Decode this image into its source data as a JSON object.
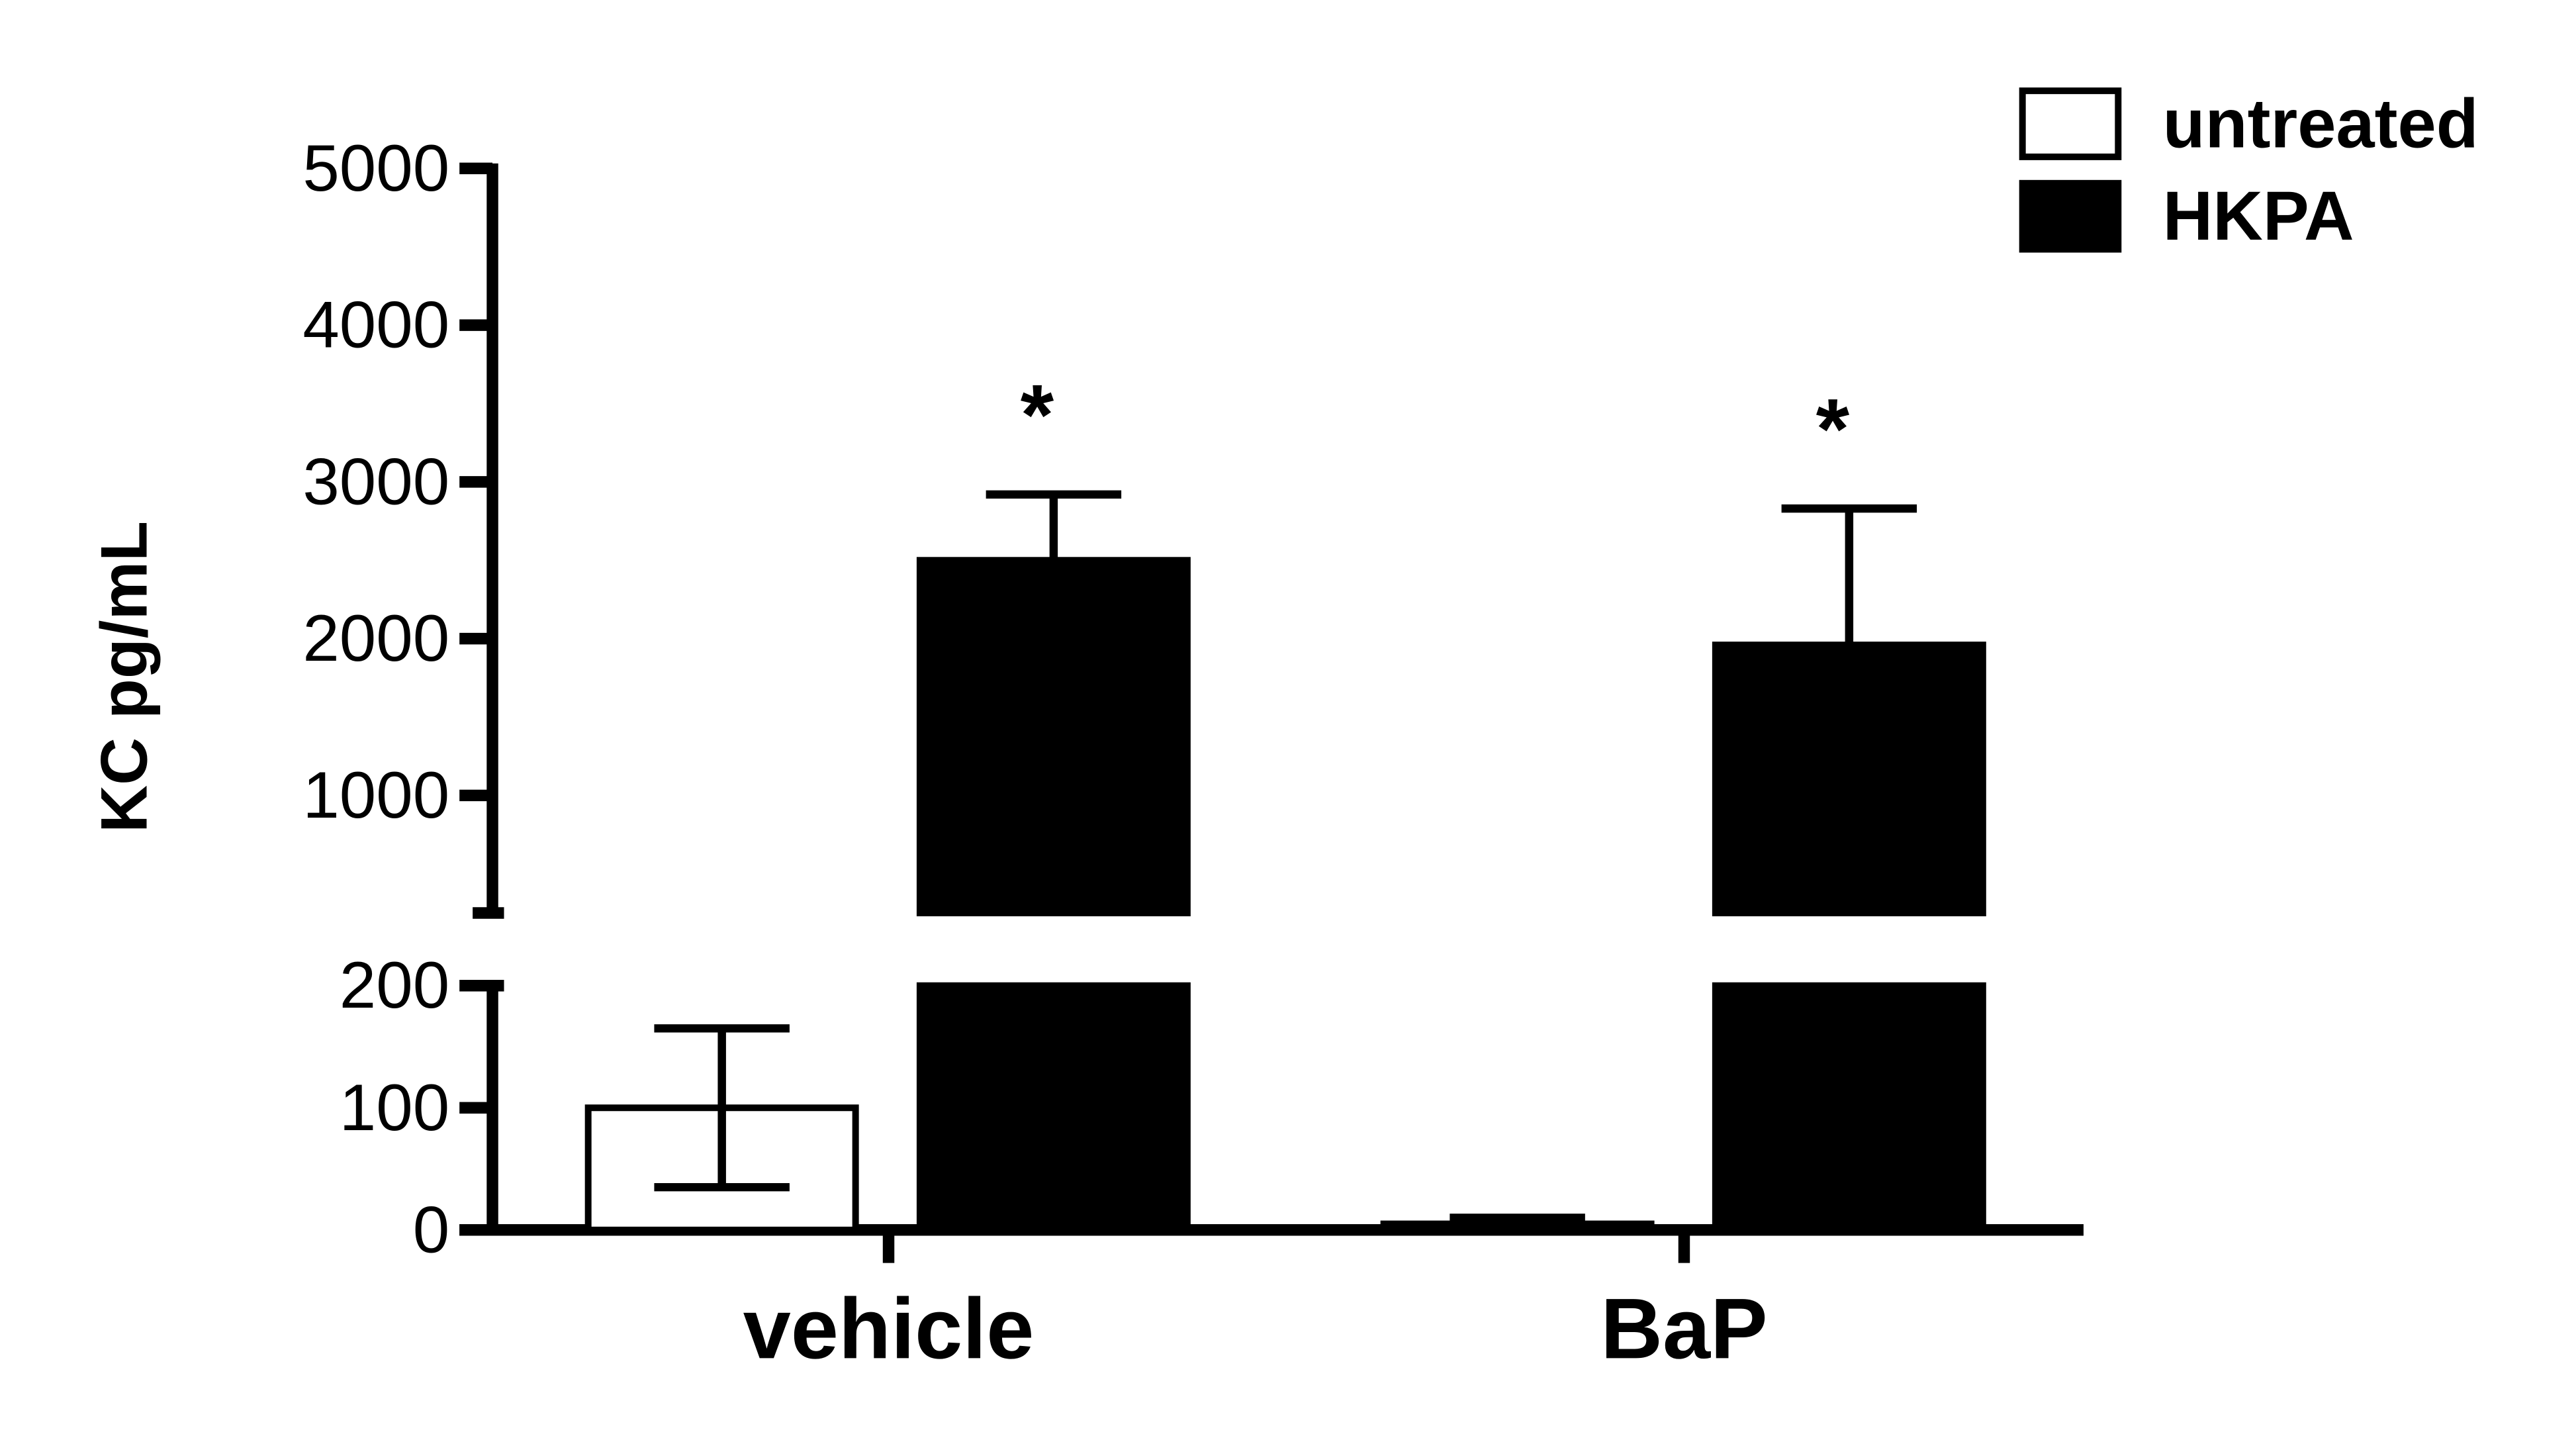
{
  "chart_data": {
    "type": "bar",
    "y_label": "KC pg/mL",
    "categories": [
      "vehicle",
      "BaP"
    ],
    "series": [
      {
        "name": "untreated",
        "color": "#ffffff",
        "values": [
          100,
          5
        ],
        "errors": [
          65,
          5
        ]
      },
      {
        "name": "HKPA",
        "color": "#000000",
        "values": [
          2500,
          1960
        ],
        "errors": [
          420,
          870
        ],
        "annotations": [
          "*",
          "*"
        ]
      }
    ],
    "y_segments": [
      {
        "ylim": [
          0,
          200
        ],
        "yticks": [
          0,
          100,
          200
        ]
      },
      {
        "ylim": [
          250,
          5000
        ],
        "yticks": [
          1000,
          2000,
          3000,
          4000,
          5000
        ]
      }
    ],
    "legend": "top-right"
  }
}
